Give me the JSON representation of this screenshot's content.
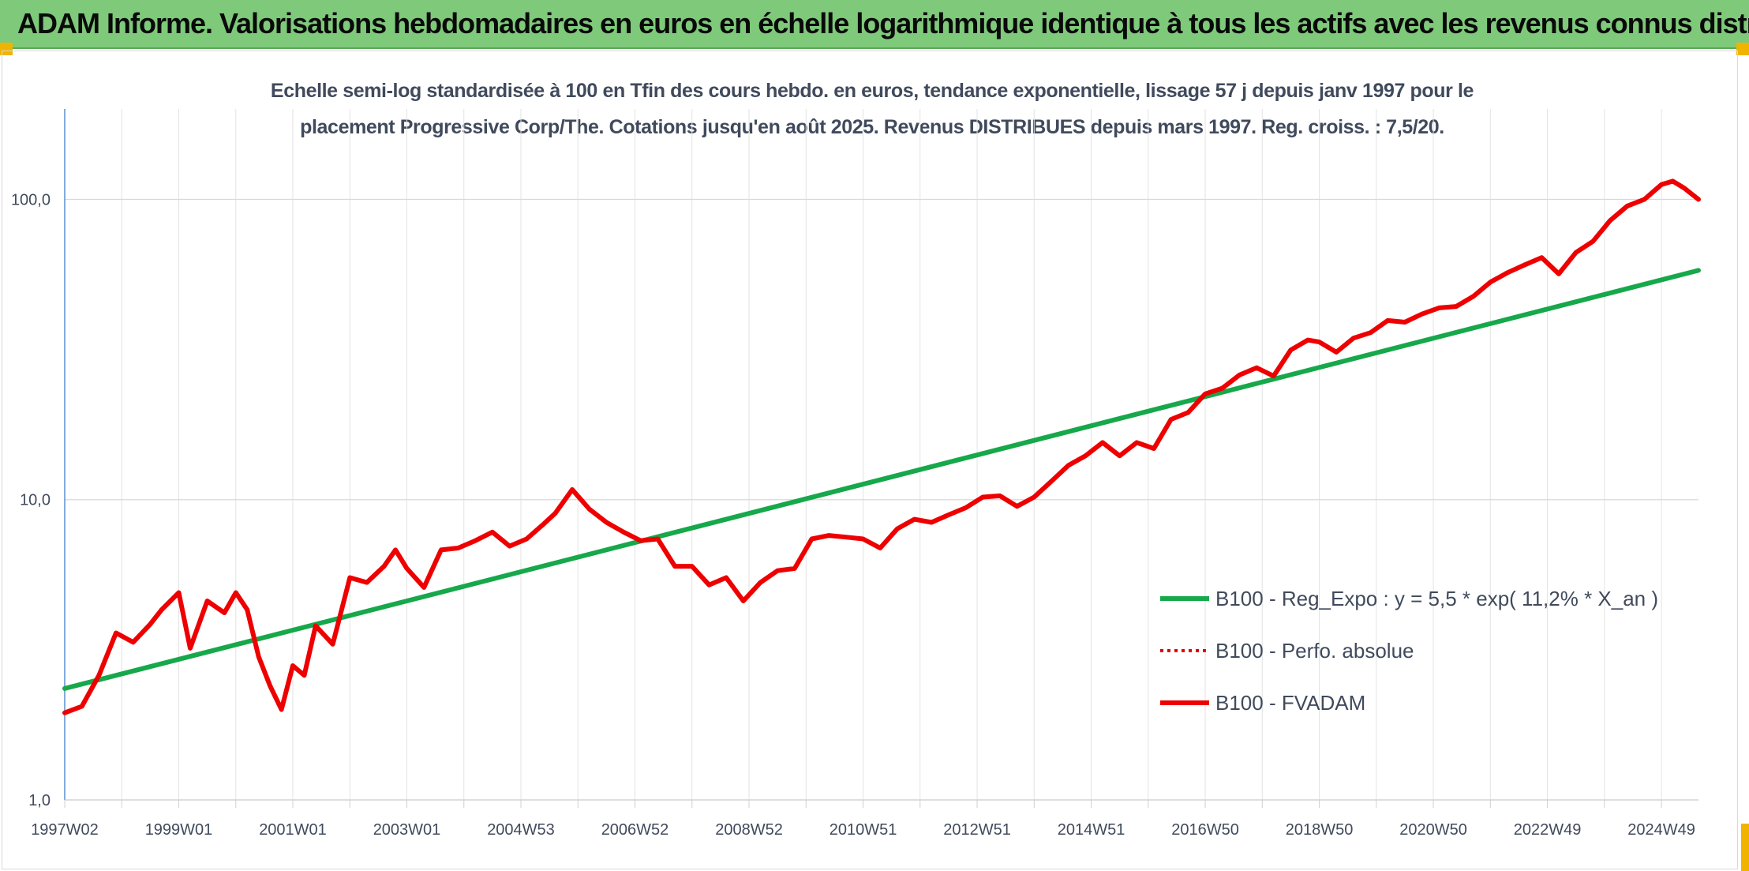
{
  "header": {
    "title": "ADAM Informe. Valorisations hebdomadaires en euros en échelle logarithmique identique à tous les actifs avec les revenus connus distribués"
  },
  "chart_data": {
    "type": "line",
    "title": "Echelle semi-log standardisée à 100 en Tfin des cours hebdo. en euros, tendance exponentielle, lissage 57 j depuis janv 1997 pour le placement Progressive Corp/The. Cotations jusqu'en août 2025. Revenus DISTRIBUES depuis mars 1997. Reg. croiss. : 7,5/20.",
    "title_line1": "Echelle semi-log standardisée à 100 en Tfin des cours hebdo. en euros, tendance exponentielle, lissage 57 j depuis janv 1997 pour le",
    "title_line2": "placement Progressive Corp/The. Cotations jusqu'en août 2025. Revenus DISTRIBUES depuis mars 1997. Reg. croiss. : 7,5/20.",
    "xlabel": "",
    "ylabel": "",
    "y_scale": "log",
    "ylim": [
      1,
      200
    ],
    "xlim": [
      1997.0,
      2025.65
    ],
    "grid": true,
    "legend_position": "right",
    "y_ticks": [
      {
        "value": 1,
        "label": "1,0"
      },
      {
        "value": 10,
        "label": "10,0"
      },
      {
        "value": 100,
        "label": "100,0"
      }
    ],
    "x_ticks": [
      {
        "x": 1997.0,
        "label": "1997W02"
      },
      {
        "x": 1999.0,
        "label": "1999W01"
      },
      {
        "x": 2001.0,
        "label": "2001W01"
      },
      {
        "x": 2003.0,
        "label": "2003W01"
      },
      {
        "x": 2005.0,
        "label": "2004W53"
      },
      {
        "x": 2007.0,
        "label": "2006W52"
      },
      {
        "x": 2009.0,
        "label": "2008W52"
      },
      {
        "x": 2011.0,
        "label": "2010W51"
      },
      {
        "x": 2013.0,
        "label": "2012W51"
      },
      {
        "x": 2015.0,
        "label": "2014W51"
      },
      {
        "x": 2017.0,
        "label": "2016W50"
      },
      {
        "x": 2019.0,
        "label": "2018W50"
      },
      {
        "x": 2021.0,
        "label": "2020W50"
      },
      {
        "x": 2023.0,
        "label": "2022W49"
      },
      {
        "x": 2025.0,
        "label": "2024W49"
      }
    ],
    "series": [
      {
        "name": "B100 - Reg_Expo : y = 5,5 * exp( 11,2% *  X_an )",
        "color": "#16a84a",
        "style": "solid",
        "x": [
          1997.0,
          2025.65
        ],
        "y": [
          2.35,
          58.0
        ]
      },
      {
        "name": "B100 - Perfo. absolue",
        "color": "#e00000",
        "style": "dotted",
        "x": [],
        "y": []
      },
      {
        "name": "B100 - FVADAM",
        "color": "#ee0000",
        "style": "solid",
        "x": [
          1997.0,
          1997.3,
          1997.6,
          1997.9,
          1998.2,
          1998.5,
          1998.7,
          1999.0,
          1999.2,
          1999.5,
          1999.8,
          2000.0,
          2000.2,
          2000.4,
          2000.6,
          2000.8,
          2001.0,
          2001.2,
          2001.4,
          2001.7,
          2002.0,
          2002.3,
          2002.6,
          2002.8,
          2003.0,
          2003.3,
          2003.6,
          2003.9,
          2004.2,
          2004.5,
          2004.8,
          2005.1,
          2005.4,
          2005.6,
          2005.9,
          2006.2,
          2006.5,
          2006.8,
          2007.1,
          2007.4,
          2007.7,
          2008.0,
          2008.3,
          2008.6,
          2008.9,
          2009.2,
          2009.5,
          2009.8,
          2010.1,
          2010.4,
          2010.7,
          2011.0,
          2011.3,
          2011.6,
          2011.9,
          2012.2,
          2012.5,
          2012.8,
          2013.1,
          2013.4,
          2013.7,
          2014.0,
          2014.3,
          2014.6,
          2014.9,
          2015.2,
          2015.5,
          2015.8,
          2016.1,
          2016.4,
          2016.7,
          2017.0,
          2017.3,
          2017.6,
          2017.9,
          2018.2,
          2018.5,
          2018.8,
          2019.0,
          2019.3,
          2019.6,
          2019.9,
          2020.2,
          2020.5,
          2020.8,
          2021.1,
          2021.4,
          2021.7,
          2022.0,
          2022.3,
          2022.6,
          2022.9,
          2023.2,
          2023.5,
          2023.8,
          2024.1,
          2024.4,
          2024.7,
          2025.0,
          2025.2,
          2025.4,
          2025.65
        ],
        "y": [
          1.95,
          2.05,
          2.6,
          3.6,
          3.35,
          3.85,
          4.3,
          4.9,
          3.2,
          4.6,
          4.2,
          4.9,
          4.3,
          3.0,
          2.4,
          2.0,
          2.8,
          2.6,
          3.8,
          3.3,
          5.5,
          5.3,
          6.0,
          6.8,
          5.9,
          5.1,
          6.8,
          6.9,
          7.3,
          7.8,
          7.0,
          7.4,
          8.3,
          9.0,
          10.8,
          9.3,
          8.4,
          7.8,
          7.3,
          7.4,
          6.0,
          6.0,
          5.2,
          5.5,
          4.6,
          5.3,
          5.8,
          5.9,
          7.4,
          7.6,
          7.5,
          7.4,
          6.9,
          8.0,
          8.6,
          8.4,
          8.9,
          9.4,
          10.2,
          10.3,
          9.5,
          10.2,
          11.5,
          13.0,
          14.0,
          15.5,
          14.0,
          15.5,
          14.8,
          18.5,
          19.5,
          22.5,
          23.5,
          26.0,
          27.5,
          25.8,
          31.5,
          34.0,
          33.5,
          31.0,
          34.5,
          36.0,
          39.5,
          39.0,
          41.5,
          43.5,
          44.0,
          47.5,
          53.0,
          57.0,
          60.5,
          64.0,
          56.5,
          66.5,
          72.5,
          85.0,
          95.0,
          100.0,
          112.0,
          115.0,
          109.0,
          100.0
        ]
      }
    ]
  },
  "legend": {
    "items": [
      {
        "label": "B100 - Reg_Expo : y = 5,5 * exp( 11,2% *  X_an )",
        "color": "#16a84a",
        "style": "solid"
      },
      {
        "label": "B100 - Perfo. absolue",
        "color": "#e00000",
        "style": "dotted"
      },
      {
        "label": "B100 - FVADAM",
        "color": "#ee0000",
        "style": "solid"
      }
    ]
  }
}
